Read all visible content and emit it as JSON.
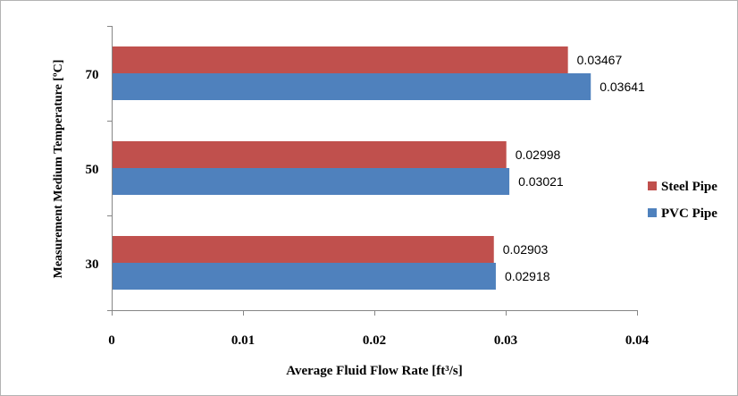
{
  "chart_data": {
    "type": "bar",
    "orientation": "horizontal",
    "title": "",
    "xlabel": "Average Fluid Flow Rate [ft³/s]",
    "ylabel": "Measurement Medium Temperature [ºC]",
    "categories": [
      "30",
      "50",
      "70"
    ],
    "series": [
      {
        "name": "Steel Pipe",
        "color": "#c0504d",
        "values": [
          0.02903,
          0.02998,
          0.03467
        ]
      },
      {
        "name": "PVC Pipe",
        "color": "#4f81bd",
        "values": [
          0.02918,
          0.03021,
          0.03641
        ]
      }
    ],
    "data_labels": {
      "Steel Pipe": [
        "0.02903",
        "0.02998",
        "0.03467"
      ],
      "PVC Pipe": [
        "0.02918",
        "0.03021",
        "0.03641"
      ]
    },
    "xlim": [
      0,
      0.04
    ],
    "x_ticks": [
      "0",
      "0.01",
      "0.02",
      "0.03",
      "0.04"
    ],
    "grid": false,
    "legend_position": "right"
  }
}
